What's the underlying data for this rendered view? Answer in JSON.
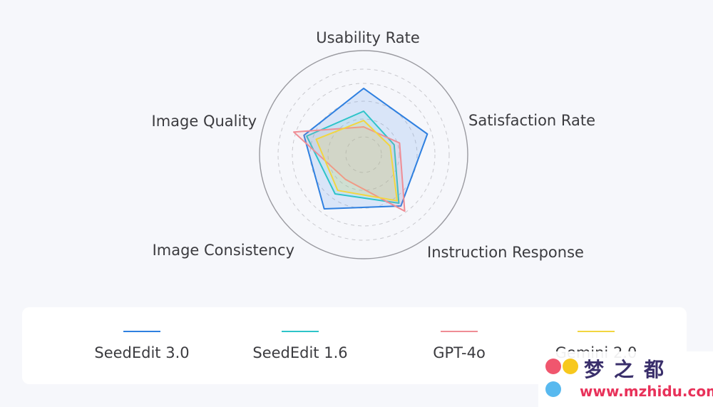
{
  "chart_data": {
    "type": "radar",
    "axes": [
      "Usability Rate",
      "Satisfaction Rate",
      "Instruction Response",
      "Image Consistency",
      "Image Quality"
    ],
    "range": [
      0,
      1
    ],
    "grid": "dashed rings",
    "legend_placement": "bottom",
    "series": [
      {
        "name": "SeedEdit 3.0",
        "color": "#2f80e0",
        "fill": "rgba(90,150,240,0.18)",
        "values": [
          0.93,
          0.94,
          0.89,
          0.94,
          0.88
        ]
      },
      {
        "name": "SeedEdit 1.6",
        "color": "#2ec4c9",
        "fill": "rgba(46,196,201,0.10)",
        "values": [
          0.61,
          0.45,
          0.84,
          0.68,
          0.84
        ]
      },
      {
        "name": "GPT-4o",
        "color": "#ef8d95",
        "fill": "rgba(239,141,149,0.12)",
        "values": [
          0.39,
          0.53,
          0.98,
          0.43,
          1.03
        ]
      },
      {
        "name": "Gemini 2.0",
        "color": "#f2d640",
        "fill": "rgba(242,214,64,0.18)",
        "values": [
          0.48,
          0.39,
          0.8,
          0.62,
          0.7
        ]
      }
    ]
  },
  "watermark": {
    "title": "梦之都",
    "url": "www.mzhidu.com",
    "dot_colors": [
      "#f0566e",
      "#f7c81e",
      "#58b9ef"
    ]
  }
}
